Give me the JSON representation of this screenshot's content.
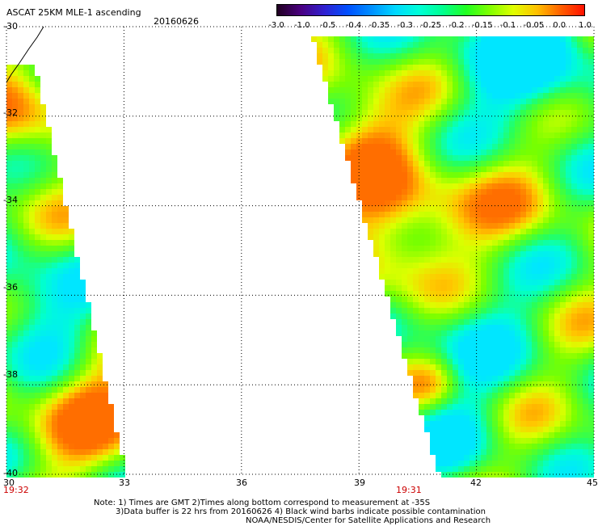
{
  "title": "ASCAT 25KM MLE-1 ascending",
  "date": "20160626",
  "colorbar": {
    "labels": [
      "-3.0",
      "-1.0",
      "-0.5",
      "-0.4",
      "-0.35",
      "-0.3",
      "-0.25",
      "-0.2",
      "-0.15",
      "-0.1",
      "-0.05",
      "0.0",
      "1.0"
    ],
    "colors": [
      "#200020",
      "#4a0080",
      "#3020d0",
      "#0050ff",
      "#0090ff",
      "#00d8ff",
      "#00ffd8",
      "#00ff90",
      "#20ff20",
      "#80ff00",
      "#e0ff00",
      "#ffc000",
      "#ff6000",
      "#ff1000"
    ]
  },
  "axes": {
    "lat_labels": [
      "-30",
      "-32",
      "-34",
      "-36",
      "-38",
      "-40"
    ],
    "lon_labels": [
      "30",
      "33",
      "36",
      "39",
      "42",
      "45"
    ]
  },
  "pass_times": [
    "19:32",
    "19:31"
  ],
  "notes": {
    "line1": "Note: 1) Times are GMT 2)Times along bottom correspond to measurement at -35S",
    "line2": "3)Data buffer is 22 hrs from 20160626 4) Black wind barbs indicate possible contamination",
    "line3": "NOAA/NESDIS/Center for Satellite Applications and Research"
  }
}
